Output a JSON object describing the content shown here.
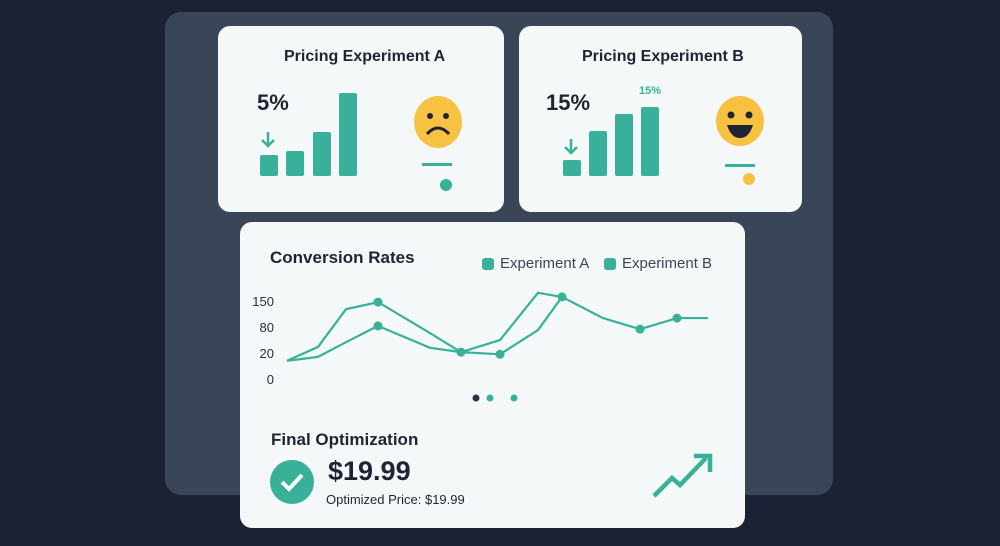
{
  "experiment_a": {
    "title": "Pricing Experiment A",
    "value": "5%",
    "mood": "sad-face-icon"
  },
  "experiment_b": {
    "title": "Pricing Experiment B",
    "value": "15%",
    "bar_label": "15%",
    "mood": "happy-face-icon"
  },
  "colors": {
    "accent": "#38b09a",
    "emoji": "#f7c242",
    "dark": "#1e2433"
  },
  "chart_data": {
    "type": "line",
    "title": "Conversion Rates",
    "yticks": [
      150,
      80,
      20,
      0
    ],
    "legend_position": "top-right",
    "series": [
      {
        "name": "Experiment A",
        "values": [
          14,
          34,
          128,
          147,
          66,
          22,
          50,
          172,
          161,
          104,
          75,
          104,
          104
        ],
        "markers": [
          3,
          5,
          8,
          10,
          11
        ]
      },
      {
        "name": "Experiment B",
        "values": [
          14,
          17,
          45,
          83,
          32,
          22,
          19,
          73,
          161,
          null,
          null,
          null,
          null
        ],
        "markers": [
          3,
          6
        ]
      }
    ],
    "grid": false
  },
  "final": {
    "title": "Final Optimization",
    "price": "$19.99",
    "subtitle": "Optimized Price: $19.99"
  }
}
